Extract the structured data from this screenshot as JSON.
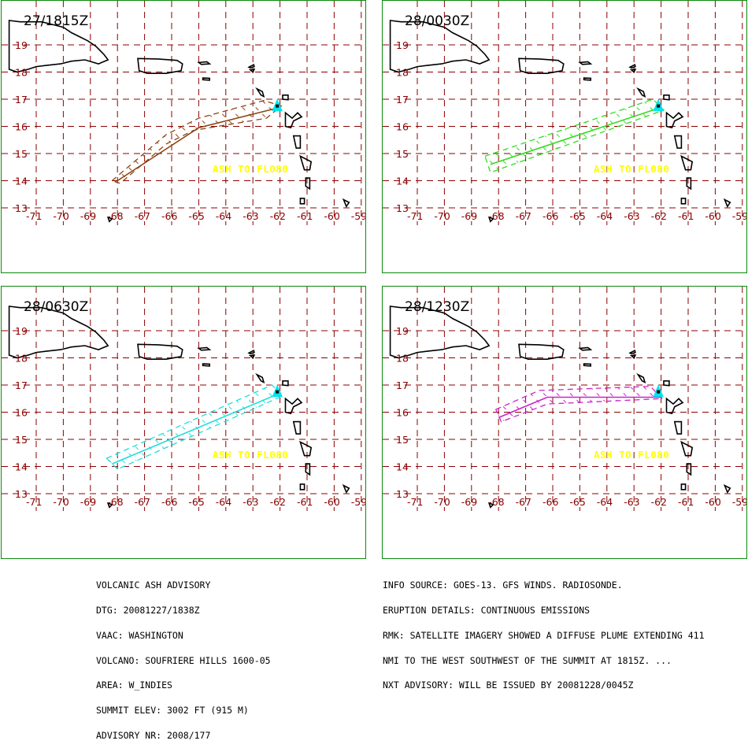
{
  "colors": {
    "grid": "#8b0000",
    "tick_label": "#8b0000",
    "coast": "#000000",
    "panel_border": "#0c8a0c",
    "annotation": "#ffff00",
    "volcano_marker": "#00e5ee"
  },
  "map": {
    "lon_labels": [
      "-71",
      "-70",
      "-69",
      "-68",
      "-67",
      "-66",
      "-65",
      "-64",
      "-63",
      "-62",
      "-61",
      "-60",
      "-59"
    ],
    "lat_labels": [
      "19",
      "18",
      "17",
      "16",
      "15",
      "14",
      "13"
    ],
    "annotation": "ASH TO FL080"
  },
  "panels": [
    {
      "time": "27/1815Z",
      "plume_color": "#8b4513",
      "outline": [
        [
          -68.2,
          14.0
        ],
        [
          -66.2,
          15.7
        ],
        [
          -65.0,
          16.3
        ],
        [
          -62.6,
          16.95
        ],
        [
          -61.95,
          16.75
        ],
        [
          -62.5,
          16.3
        ],
        [
          -65.2,
          15.85
        ],
        [
          -66.2,
          15.35
        ],
        [
          -67.9,
          13.9
        ]
      ],
      "axis": [
        [
          -68.0,
          14.0
        ],
        [
          -65.0,
          15.95
        ],
        [
          -62.0,
          16.7
        ]
      ]
    },
    {
      "time": "28/0030Z",
      "plume_color": "#33dd22",
      "outline": [
        [
          -68.5,
          14.9
        ],
        [
          -62.3,
          17.0
        ],
        [
          -61.9,
          16.6
        ],
        [
          -68.3,
          14.3
        ]
      ],
      "axis": [
        [
          -68.3,
          14.6
        ],
        [
          -62.0,
          16.7
        ]
      ]
    },
    {
      "time": "28/0630Z",
      "plume_color": "#22dddd",
      "outline": [
        [
          -68.4,
          14.3
        ],
        [
          -62.3,
          17.0
        ],
        [
          -61.9,
          16.6
        ],
        [
          -68.0,
          13.9
        ]
      ],
      "axis": [
        [
          -68.2,
          14.1
        ],
        [
          -62.0,
          16.7
        ]
      ]
    },
    {
      "time": "28/1230Z",
      "plume_color": "#cc22cc",
      "outline": [
        [
          -68.1,
          16.1
        ],
        [
          -66.5,
          16.8
        ],
        [
          -62.4,
          16.95
        ],
        [
          -61.95,
          16.5
        ],
        [
          -66.2,
          16.3
        ],
        [
          -67.9,
          15.65
        ]
      ],
      "axis": [
        [
          -68.0,
          15.8
        ],
        [
          -66.2,
          16.55
        ],
        [
          -62.0,
          16.55
        ]
      ]
    }
  ],
  "advisory_left": [
    "VOLCANIC ASH ADVISORY",
    "DTG: 20081227/1838Z",
    "VAAC: WASHINGTON",
    "VOLCANO: SOUFRIERE HILLS 1600-05",
    "AREA: W_INDIES",
    "SUMMIT ELEV: 3002 FT (915 M)",
    "ADVISORY NR: 2008/177"
  ],
  "advisory_right": [
    "INFO SOURCE: GOES-13. GFS WINDS. RADIOSONDE.",
    "ERUPTION DETAILS: CONTINUOUS EMISSIONS",
    "RMK: SATELLITE IMAGERY SHOWED A DIFFUSE PLUME EXTENDING 411",
    "NMI TO THE WEST SOUTHWEST OF THE SUMMIT AT 1815Z. ...",
    "NXT ADVISORY: WILL BE ISSUED BY 20081228/0045Z"
  ]
}
